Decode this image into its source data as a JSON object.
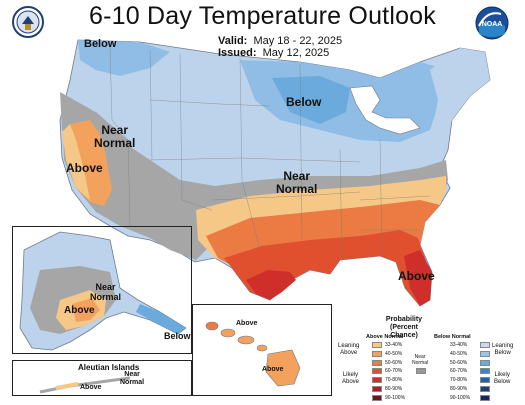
{
  "header": {
    "title": "6-10 Day Temperature Outlook",
    "valid_label": "Valid:",
    "valid_value": "May 18 - 22, 2025",
    "issued_label": "Issued:",
    "issued_value": "May 12, 2025"
  },
  "logos": {
    "noaa_text": "NOAA"
  },
  "labels": {
    "pnw_below": "Below",
    "ca_near_1": "Near",
    "ca_near_2": "Normal",
    "ca_above": "Above",
    "lakes_below": "Below",
    "mid_near_1": "Near",
    "mid_near_2": "Normal",
    "se_above": "Above",
    "ak_near_1": "Near",
    "ak_near_2": "Normal",
    "ak_above": "Above",
    "ak_below": "Below",
    "hi_above_1": "Above",
    "hi_above_2": "Above",
    "aleutian_title": "Aleutian Islands",
    "aleutian_near_1": "Near",
    "aleutian_near_2": "Normal",
    "aleutian_above": "Above"
  },
  "legend": {
    "title_1": "Probability",
    "title_2": "(Percent Chance)",
    "above_head": "Above Normal",
    "below_head": "Below Normal",
    "leaning_above_1": "Leaning",
    "leaning_above_2": "Above",
    "likely_above_1": "Likely",
    "likely_above_2": "Above",
    "near_normal_1": "Near",
    "near_normal_2": "Normal",
    "leaning_below_1": "Leaning",
    "leaning_below_2": "Below",
    "likely_below_1": "Likely",
    "likely_below_2": "Below",
    "above_ranges": [
      "33-40%",
      "40-50%",
      "50-60%",
      "60-70%",
      "70-80%",
      "80-90%",
      "90-100%"
    ],
    "below_ranges": [
      "33-40%",
      "40-50%",
      "50-60%",
      "60-70%",
      "70-80%",
      "80-90%",
      "90-100%"
    ],
    "above_colors": [
      "#f5c887",
      "#f2a25c",
      "#ec7a43",
      "#e0502f",
      "#cf2f2a",
      "#a82029",
      "#6d1320"
    ],
    "below_colors": [
      "#c7dcf0",
      "#9cc5e8",
      "#6aaadd",
      "#3b86c8",
      "#2262a8",
      "#1a3f84",
      "#182760"
    ],
    "near_color": "#999999"
  }
}
